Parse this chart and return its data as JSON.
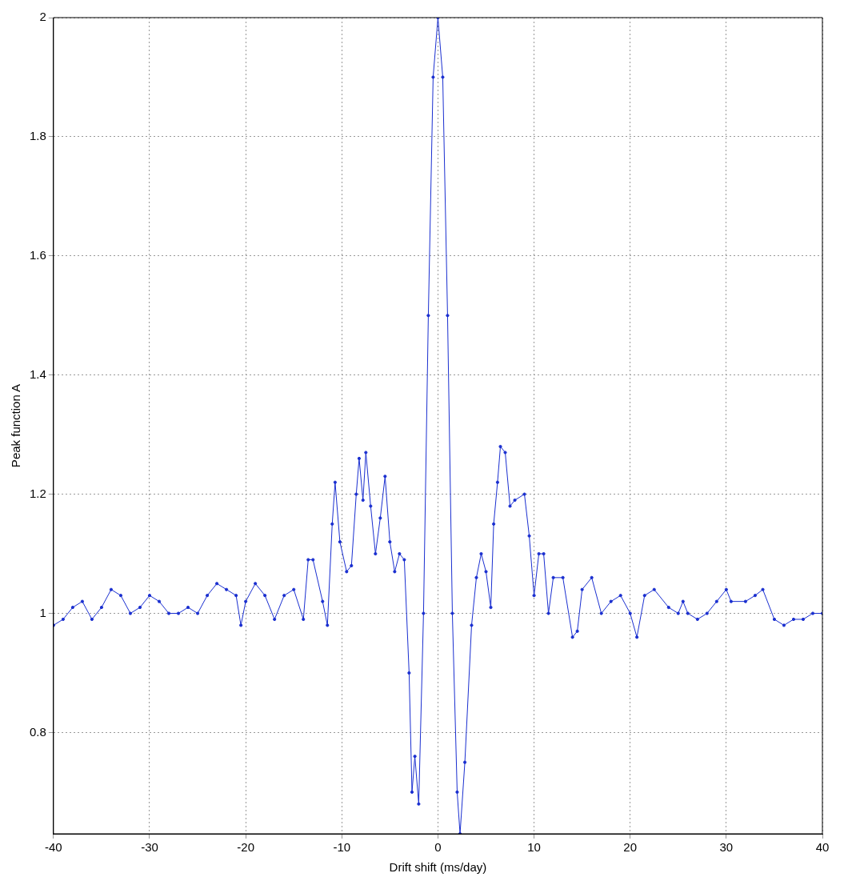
{
  "chart_data": {
    "type": "line",
    "xlabel": "Drift shift (ms/day)",
    "ylabel": "Peak function A",
    "xlim": [
      -40,
      40
    ],
    "xticks": [
      -40,
      -30,
      -20,
      -10,
      0,
      10,
      20,
      30,
      40
    ],
    "ylim": [
      0.63,
      2
    ],
    "yticks": [
      0.8,
      1,
      1.2,
      1.4,
      1.6,
      1.8,
      2
    ],
    "grid": true,
    "marker": "circle",
    "line_style": "solid",
    "series": [
      {
        "color": "#1a2fd0",
        "x": [
          -40,
          -39,
          -38,
          -37,
          -36,
          -35,
          -34,
          -33,
          -32,
          -31,
          -30,
          -29,
          -28,
          -27,
          -26,
          -25,
          -24,
          -23,
          -22,
          -21,
          -20.5,
          -20,
          -19,
          -18,
          -17,
          -16,
          -15,
          -14,
          -13.5,
          -13,
          -12,
          -11.5,
          -11,
          -10.7,
          -10.2,
          -9.5,
          -9,
          -8.5,
          -8.2,
          -7.8,
          -7.5,
          -7,
          -6.5,
          -6,
          -5.5,
          -5,
          -4.5,
          -4,
          -3.5,
          -3,
          -2.7,
          -2.4,
          -2,
          -1.5,
          -1,
          -0.5,
          0,
          0.5,
          1,
          1.5,
          2,
          2.3,
          2.8,
          3.5,
          4,
          4.5,
          5,
          5.5,
          5.8,
          6.2,
          6.5,
          7,
          7.5,
          8,
          9,
          9.5,
          10,
          10.5,
          11,
          11.5,
          12,
          13,
          14,
          14.5,
          15,
          16,
          17,
          18,
          19,
          20,
          20.7,
          21.5,
          22.5,
          24,
          25,
          25.5,
          26,
          27,
          28,
          29,
          30,
          30.5,
          32,
          33,
          33.8,
          35,
          36,
          37,
          38,
          39,
          40
        ],
        "values": [
          0.98,
          0.99,
          1.01,
          1.02,
          0.99,
          1.01,
          1.04,
          1.03,
          1.0,
          1.01,
          1.03,
          1.02,
          1.0,
          1.0,
          1.01,
          1.0,
          1.03,
          1.05,
          1.04,
          1.03,
          0.98,
          1.02,
          1.05,
          1.03,
          0.99,
          1.03,
          1.04,
          0.99,
          1.09,
          1.09,
          1.02,
          0.98,
          1.15,
          1.22,
          1.12,
          1.07,
          1.08,
          1.2,
          1.26,
          1.19,
          1.27,
          1.18,
          1.1,
          1.16,
          1.23,
          1.12,
          1.07,
          1.1,
          1.09,
          0.9,
          0.7,
          0.76,
          0.68,
          1.0,
          1.5,
          1.9,
          2.0,
          1.9,
          1.5,
          1.0,
          0.7,
          0.63,
          0.75,
          0.98,
          1.06,
          1.1,
          1.07,
          1.01,
          1.15,
          1.22,
          1.28,
          1.27,
          1.18,
          1.19,
          1.2,
          1.13,
          1.03,
          1.1,
          1.1,
          1.0,
          1.06,
          1.06,
          0.96,
          0.97,
          1.04,
          1.06,
          1.0,
          1.02,
          1.03,
          1.0,
          0.96,
          1.03,
          1.04,
          1.01,
          1.0,
          1.02,
          1.0,
          0.99,
          1.0,
          1.02,
          1.04,
          1.02,
          1.02,
          1.03,
          1.04,
          0.99,
          0.98,
          0.99,
          0.99,
          1.0,
          1.0
        ]
      }
    ]
  }
}
